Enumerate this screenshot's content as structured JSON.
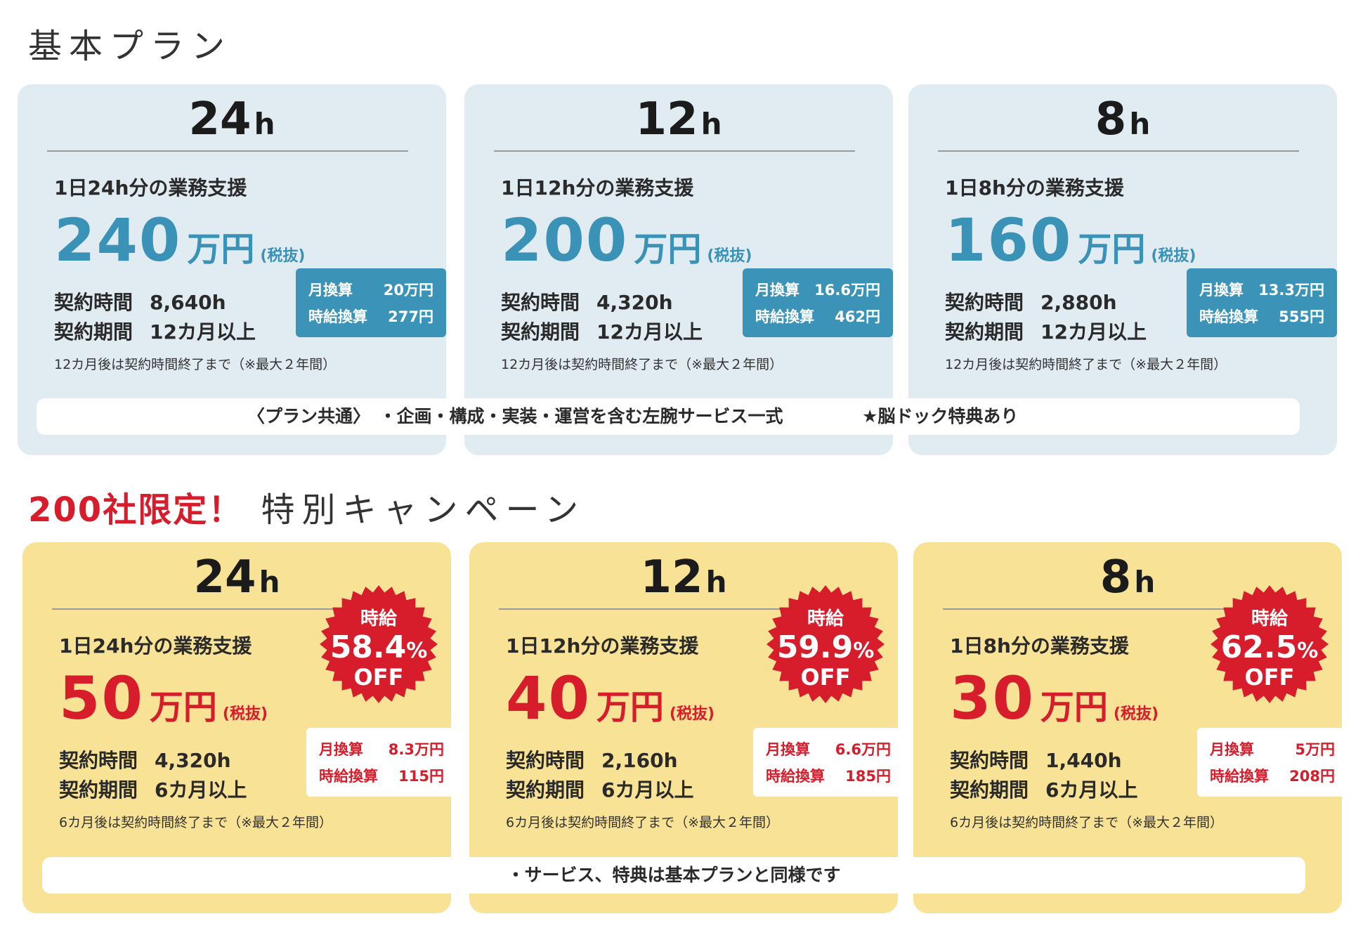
{
  "basic_title": "基本プラン",
  "campaign_title_red": "200社限定！",
  "campaign_title_rest": "特別キャンペーン",
  "accent_colors": {
    "blue": "#3a93b7",
    "red": "#d71d2b",
    "card_blue": "#e1ebf2",
    "card_yellow": "#f8e295"
  },
  "basic": [
    {
      "hours": "24",
      "unit": "h",
      "support": "1日24h分の業務支援",
      "price": "240",
      "man": "万円",
      "tax": "(税抜)",
      "contract_time_label": "契約時間",
      "contract_time": "8,640h",
      "contract_period_label": "契約期間",
      "contract_period": "12カ月以上",
      "monthly_label": "月換算",
      "monthly": "20万円",
      "hourly_label": "時給換算",
      "hourly": "277円",
      "note": "12カ月後は契約時間終了まで（※最大２年間）"
    },
    {
      "hours": "12",
      "unit": "h",
      "support": "1日12h分の業務支援",
      "price": "200",
      "man": "万円",
      "tax": "(税抜)",
      "contract_time_label": "契約時間",
      "contract_time": "4,320h",
      "contract_period_label": "契約期間",
      "contract_period": "12カ月以上",
      "monthly_label": "月換算",
      "monthly": "16.6万円",
      "hourly_label": "時給換算",
      "hourly": "462円",
      "note": "12カ月後は契約時間終了まで（※最大２年間）"
    },
    {
      "hours": "8",
      "unit": "h",
      "support": "1日8h分の業務支援",
      "price": "160",
      "man": "万円",
      "tax": "(税抜)",
      "contract_time_label": "契約時間",
      "contract_time": "2,880h",
      "contract_period_label": "契約期間",
      "contract_period": "12カ月以上",
      "monthly_label": "月換算",
      "monthly": "13.3万円",
      "hourly_label": "時給換算",
      "hourly": "555円",
      "note": "12カ月後は契約時間終了まで（※最大２年間）"
    }
  ],
  "basic_common_a": "〈プラン共通〉　・企画・構成・実装・運営を含む左腕サービス一式",
  "basic_common_b": "★脳ドック特典あり",
  "campaign": [
    {
      "hours": "24",
      "unit": "h",
      "support": "1日24h分の業務支援",
      "price": "50",
      "man": "万円",
      "tax": "(税抜)",
      "contract_time_label": "契約時間",
      "contract_time": "4,320h",
      "contract_period_label": "契約期間",
      "contract_period": "6カ月以上",
      "monthly_label": "月換算",
      "monthly": "8.3万円",
      "hourly_label": "時給換算",
      "hourly": "115円",
      "note": "6カ月後は契約時間終了まで（※最大２年間）",
      "badge_top": "時給",
      "badge_pct": "58.4",
      "badge_pct_sign": "%",
      "badge_off": "OFF"
    },
    {
      "hours": "12",
      "unit": "h",
      "support": "1日12h分の業務支援",
      "price": "40",
      "man": "万円",
      "tax": "(税抜)",
      "contract_time_label": "契約時間",
      "contract_time": "2,160h",
      "contract_period_label": "契約期間",
      "contract_period": "6カ月以上",
      "monthly_label": "月換算",
      "monthly": "6.6万円",
      "hourly_label": "時給換算",
      "hourly": "185円",
      "note": "6カ月後は契約時間終了まで（※最大２年間）",
      "badge_top": "時給",
      "badge_pct": "59.9",
      "badge_pct_sign": "%",
      "badge_off": "OFF"
    },
    {
      "hours": "8",
      "unit": "h",
      "support": "1日8h分の業務支援",
      "price": "30",
      "man": "万円",
      "tax": "(税抜)",
      "contract_time_label": "契約時間",
      "contract_time": "1,440h",
      "contract_period_label": "契約期間",
      "contract_period": "6カ月以上",
      "monthly_label": "月換算",
      "monthly": "5万円",
      "hourly_label": "時給換算",
      "hourly": "208円",
      "note": "6カ月後は契約時間終了まで（※最大２年間）",
      "badge_top": "時給",
      "badge_pct": "62.5",
      "badge_pct_sign": "%",
      "badge_off": "OFF"
    }
  ],
  "campaign_common": "・サービス、特典は基本プランと同様です"
}
